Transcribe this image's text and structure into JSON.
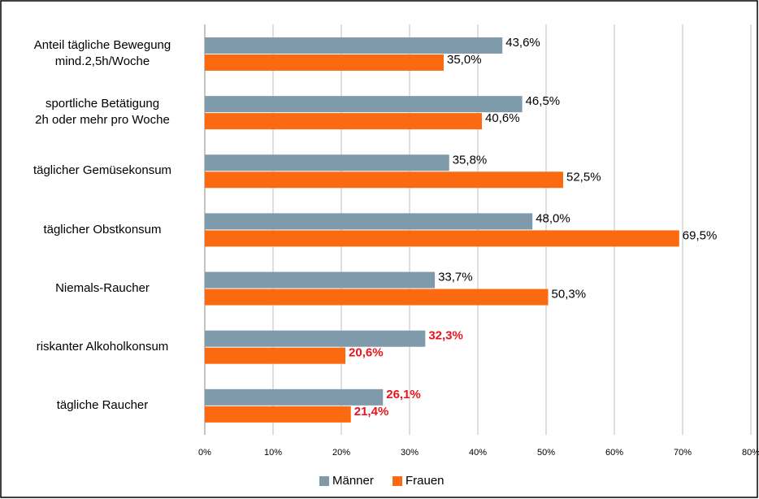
{
  "chart_data": {
    "type": "hbar",
    "categories": [
      "Anteil tägliche Bewegung\nmind.2,5h/Woche",
      "sportliche Betätigung\n2h oder mehr pro Woche",
      "täglicher Gemüsekonsum",
      "täglicher Obstkonsum",
      "Niemals-Raucher",
      "riskanter Alkoholkonsum",
      "tägliche Raucher"
    ],
    "series": [
      {
        "name": "Männer",
        "color": "#7f9aab",
        "values": [
          43.6,
          46.5,
          35.8,
          48.0,
          33.7,
          32.3,
          26.1
        ],
        "value_labels": [
          "43,6%",
          "46,5%",
          "35,8%",
          "48,0%",
          "33,7%",
          "32,3%",
          "26,1%"
        ],
        "value_label_colors": [
          "#000000",
          "#000000",
          "#000000",
          "#000000",
          "#000000",
          "#e8141c",
          "#e8141c"
        ]
      },
      {
        "name": "Frauen",
        "color": "#fb6a10",
        "values": [
          35.0,
          40.6,
          52.5,
          69.5,
          50.3,
          20.6,
          21.4
        ],
        "value_labels": [
          "35,0%",
          "40,6%",
          "52,5%",
          "69,5%",
          "50,3%",
          "20,6%",
          "21,4%"
        ],
        "value_label_colors": [
          "#000000",
          "#000000",
          "#000000",
          "#000000",
          "#000000",
          "#e8141c",
          "#e8141c"
        ]
      }
    ],
    "xlim": [
      0,
      80
    ],
    "xticks": [
      {
        "value": 0,
        "label": "0%"
      },
      {
        "value": 10,
        "label": "10%"
      },
      {
        "value": 20,
        "label": "20%"
      },
      {
        "value": 30,
        "label": "30%"
      },
      {
        "value": 40,
        "label": "40%"
      },
      {
        "value": 50,
        "label": "50%"
      },
      {
        "value": 60,
        "label": "60%"
      },
      {
        "value": 70,
        "label": "70%"
      },
      {
        "value": 80,
        "label": "80%"
      }
    ],
    "grid": true,
    "legend": "bottom"
  }
}
